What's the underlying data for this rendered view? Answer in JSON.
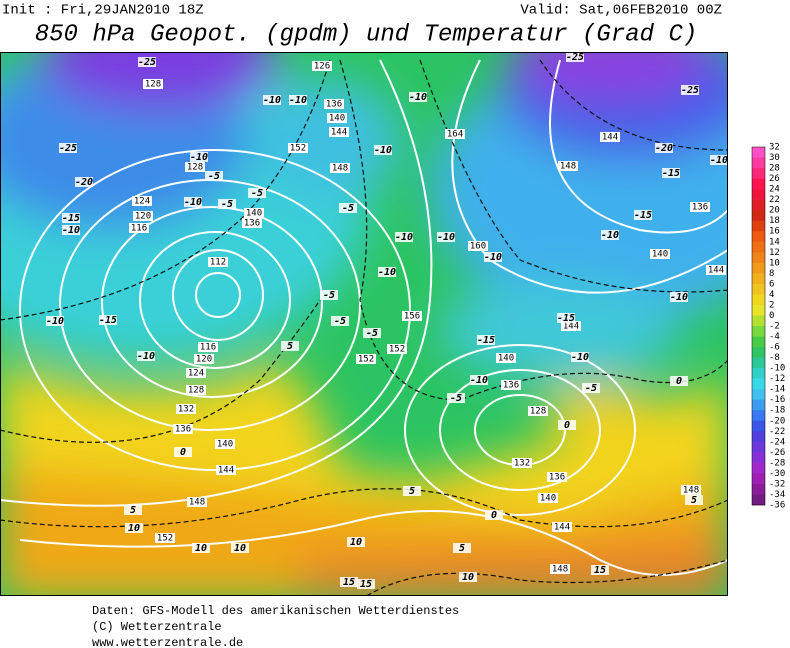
{
  "header": {
    "init": "Init : Fri,29JAN2010 18Z",
    "valid": "Valid: Sat,06FEB2010 00Z",
    "title": "850 hPa Geopot. (gpdm) und Temperatur (Grad C)"
  },
  "legend": {
    "labels": [
      32,
      30,
      28,
      26,
      24,
      22,
      20,
      18,
      16,
      14,
      12,
      10,
      8,
      6,
      4,
      2,
      0,
      -2,
      -4,
      -6,
      -8,
      -10,
      -12,
      -14,
      -16,
      -18,
      -20,
      -22,
      -24,
      -26,
      -28,
      -30,
      -32,
      -34,
      -36
    ]
  },
  "map": {
    "geopotential_labels": [
      "128",
      "126",
      "136",
      "140",
      "144",
      "148",
      "152",
      "164",
      "148",
      "144",
      "136",
      "140",
      "144",
      "160",
      "156",
      "152",
      "152",
      "144",
      "140",
      "136",
      "128",
      "132",
      "136",
      "140",
      "144",
      "148",
      "148",
      "112",
      "116",
      "120",
      "124",
      "128",
      "132",
      "136",
      "140",
      "144",
      "148",
      "152",
      "116",
      "120",
      "124",
      "128",
      "140",
      "136"
    ],
    "temperature_labels": [
      "-25",
      "-25",
      "-25",
      "-25",
      "-20",
      "-20",
      "-15",
      "-15",
      "-10",
      "-15",
      "-10",
      "-10",
      "-15",
      "-10",
      "-10",
      "-10",
      "-5",
      "-5",
      "-5",
      "-10",
      "-10",
      "-10",
      "-10",
      "-5",
      "-10",
      "-10",
      "-10",
      "-10",
      "-5",
      "-5",
      "-5",
      "-10",
      "-10",
      "-15",
      "-15",
      "-10",
      "-10",
      "-5",
      "-5",
      "0",
      "5",
      "0",
      "5",
      "10",
      "10",
      "10",
      "10",
      "5",
      "10",
      "15",
      "15",
      "15",
      "5",
      "0",
      "0",
      "5"
    ]
  },
  "footer": {
    "lines": [
      "Daten: GFS-Modell des amerikanischen Wetterdienstes",
      "(C) Wetterzentrale",
      "www.wetterzentrale.de"
    ]
  }
}
